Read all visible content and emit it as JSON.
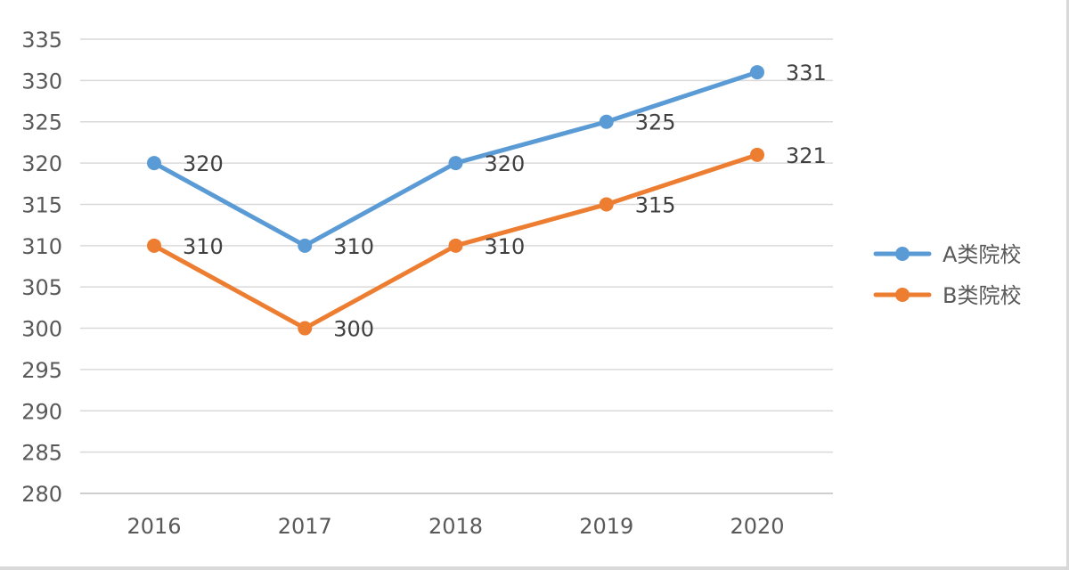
{
  "chart_data": {
    "type": "line",
    "title": "",
    "xlabel": "",
    "ylabel": "",
    "categories": [
      "2016",
      "2017",
      "2018",
      "2019",
      "2020"
    ],
    "ylim": [
      280,
      335
    ],
    "ytick_step": 5,
    "grid": true,
    "legend_position": "right",
    "series": [
      {
        "name": "A类院校",
        "color": "#5b9bd5",
        "values": [
          320,
          310,
          320,
          325,
          331
        ]
      },
      {
        "name": "B类院校",
        "color": "#ed7d31",
        "values": [
          310,
          300,
          310,
          315,
          321
        ]
      }
    ]
  }
}
